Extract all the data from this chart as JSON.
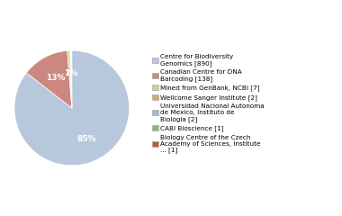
{
  "labels": [
    "Centre for Biodiversity\nGenomics [890]",
    "Canadian Centre for DNA\nBarcoding [138]",
    "Mined from GenBank, NCBI [7]",
    "Wellcome Sanger Institute [2]",
    "Universidad Nacional Autonoma\nde Mexico, Instituto de\nBiologia [2]",
    "CABI Bioscience [1]",
    "Biology Centre of the Czech\nAcademy of Sciences, Institute\n... [1]"
  ],
  "values": [
    890,
    138,
    7,
    2,
    2,
    1,
    1
  ],
  "colors": [
    "#b8c8dc",
    "#cc8880",
    "#ccd488",
    "#d8a870",
    "#a8b8d0",
    "#88b870",
    "#c05840"
  ],
  "pct_labels": [
    "85%",
    "13%",
    "",
    "1%",
    "",
    "",
    ""
  ],
  "figsize": [
    3.8,
    2.4
  ],
  "dpi": 100
}
